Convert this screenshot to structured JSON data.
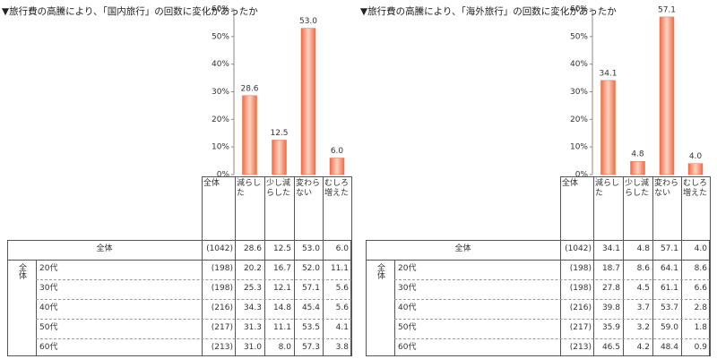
{
  "chart_data": [
    {
      "type": "bar",
      "title": "▼旅行費の高騰により、「国内旅行」の回数に変化があったか",
      "categories": [
        "減らした",
        "少し減らした",
        "変わらない",
        "むしろ増えた"
      ],
      "values": [
        28.6,
        12.5,
        53.0,
        6.0
      ],
      "value_labels": [
        "28.6",
        "12.5",
        "53.0",
        "6.0"
      ],
      "color": "#f26b43",
      "ylim": [
        0,
        60
      ],
      "yticks": [
        {
          "value": 0,
          "label": "0%"
        },
        {
          "value": 10,
          "label": "10%"
        },
        {
          "value": 20,
          "label": "20%"
        },
        {
          "value": 30,
          "label": "30%"
        },
        {
          "value": 40,
          "label": "40%"
        },
        {
          "value": 50,
          "label": "50%"
        },
        {
          "value": 60,
          "label": "60%"
        }
      ],
      "grid": false
    },
    {
      "type": "bar",
      "title": "▼旅行費の高騰により、「海外旅行」の回数に変化があったか",
      "categories": [
        "減らした",
        "少し減らした",
        "変わらない",
        "むしろ増えた"
      ],
      "values": [
        34.1,
        4.8,
        57.1,
        4.0
      ],
      "value_labels": [
        "34.1",
        "4.8",
        "57.1",
        "4.0"
      ],
      "color": "#f26b43",
      "ylim": [
        0,
        60
      ],
      "yticks": [
        {
          "value": 0,
          "label": "0%"
        },
        {
          "value": 10,
          "label": "10%"
        },
        {
          "value": 20,
          "label": "20%"
        },
        {
          "value": 30,
          "label": "30%"
        },
        {
          "value": 40,
          "label": "40%"
        },
        {
          "value": 50,
          "label": "50%"
        },
        {
          "value": 60,
          "label": "60%"
        }
      ],
      "grid": false
    }
  ],
  "tables": [
    {
      "header_corner": "全体",
      "group_label": "全体",
      "rows": [
        {
          "label": "全体",
          "n": "(1042)",
          "values": [
            "28.6",
            "12.5",
            "53.0",
            "6.0"
          ]
        },
        {
          "label": "20代",
          "n": "(198)",
          "values": [
            "20.2",
            "16.7",
            "52.0",
            "11.1"
          ]
        },
        {
          "label": "30代",
          "n": "(198)",
          "values": [
            "25.3",
            "12.1",
            "57.1",
            "5.6"
          ]
        },
        {
          "label": "40代",
          "n": "(216)",
          "values": [
            "34.3",
            "14.8",
            "45.4",
            "5.6"
          ]
        },
        {
          "label": "50代",
          "n": "(217)",
          "values": [
            "31.3",
            "11.1",
            "53.5",
            "4.1"
          ]
        },
        {
          "label": "60代",
          "n": "(213)",
          "values": [
            "31.0",
            "8.0",
            "57.3",
            "3.8"
          ]
        }
      ]
    },
    {
      "header_corner": "全体",
      "group_label": "全体",
      "rows": [
        {
          "label": "全体",
          "n": "(1042)",
          "values": [
            "34.1",
            "4.8",
            "57.1",
            "4.0"
          ]
        },
        {
          "label": "20代",
          "n": "(198)",
          "values": [
            "18.7",
            "8.6",
            "64.1",
            "8.6"
          ]
        },
        {
          "label": "30代",
          "n": "(198)",
          "values": [
            "27.8",
            "4.5",
            "61.1",
            "6.6"
          ]
        },
        {
          "label": "40代",
          "n": "(216)",
          "values": [
            "39.8",
            "3.7",
            "53.7",
            "2.8"
          ]
        },
        {
          "label": "50代",
          "n": "(217)",
          "values": [
            "35.9",
            "3.2",
            "59.0",
            "1.8"
          ]
        },
        {
          "label": "60代",
          "n": "(213)",
          "values": [
            "46.5",
            "4.2",
            "48.4",
            "0.9"
          ]
        }
      ]
    }
  ]
}
